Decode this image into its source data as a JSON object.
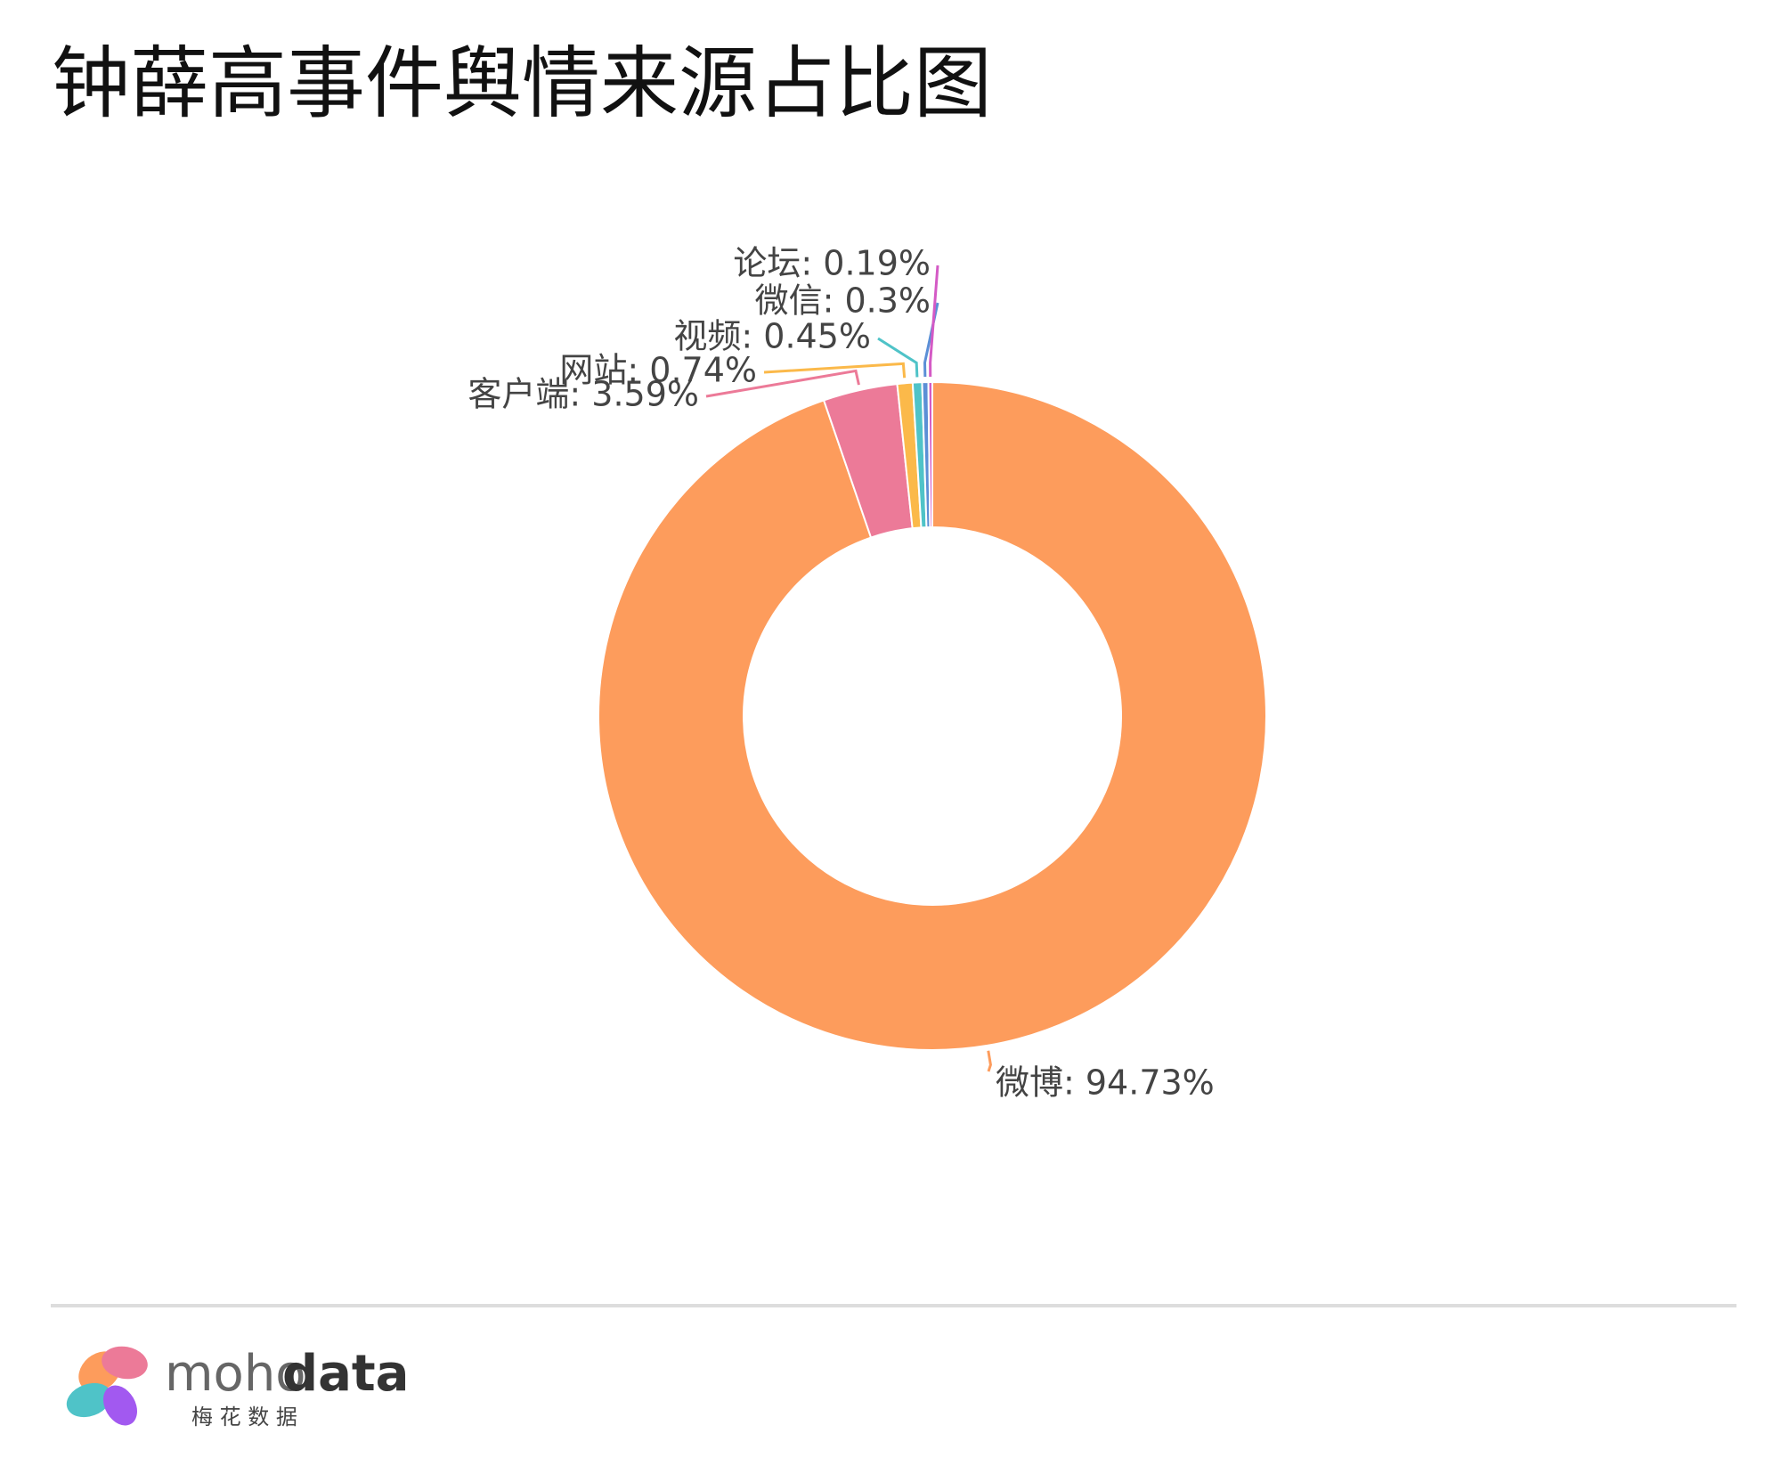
{
  "chart_data": {
    "type": "donut",
    "title": "钟薛高事件舆情来源占比图",
    "values": [
      94.73,
      3.59,
      0.74,
      0.45,
      0.3,
      0.19
    ],
    "value_labels": [
      "微博: 94.73%",
      "客户端: 3.59%",
      "网站: 0.74%",
      "视频: 0.45%",
      "微信: 0.3%",
      "论坛: 0.19%"
    ],
    "colors": [
      "#fd9c5c",
      "#ec7a98",
      "#fbb94a",
      "#4fc3c8",
      "#5b8fd6",
      "#d45ac5"
    ]
  },
  "footer": {
    "brand_light": "moho",
    "brand_bold": "data",
    "brand_sub": "梅 花 数 据"
  }
}
